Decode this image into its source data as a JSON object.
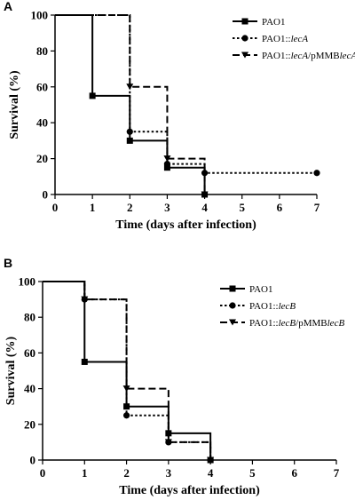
{
  "chart_data": [
    {
      "type": "line",
      "panel_label": "A",
      "step": true,
      "xlabel": "Time (days after infection)",
      "ylabel": "Survival (%)",
      "xlim": [
        0,
        7
      ],
      "ylim": [
        0,
        100
      ],
      "xticks": [
        "0",
        "1",
        "2",
        "3",
        "4",
        "5",
        "6",
        "7"
      ],
      "yticks": [
        "0",
        "20",
        "40",
        "60",
        "80",
        "100"
      ],
      "legend_position": "top-right",
      "series": [
        {
          "name_parts": [
            {
              "t": "PAO1",
              "i": false
            }
          ],
          "marker": "square",
          "dash": "solid",
          "steps": [
            [
              0,
              100
            ],
            [
              1,
              55
            ],
            [
              2,
              30
            ],
            [
              3,
              15
            ],
            [
              4,
              0
            ]
          ],
          "end_x": 4,
          "points": [
            [
              1,
              55
            ],
            [
              2,
              30
            ],
            [
              3,
              15
            ],
            [
              4,
              0
            ]
          ]
        },
        {
          "name_parts": [
            {
              "t": "PAO1::",
              "i": false
            },
            {
              "t": "lecA",
              "i": true
            }
          ],
          "marker": "circle",
          "dash": "dotted",
          "steps": [
            [
              0,
              100
            ],
            [
              2,
              35
            ],
            [
              3,
              17
            ],
            [
              4,
              12
            ]
          ],
          "end_x": 7,
          "points": [
            [
              2,
              35
            ],
            [
              3,
              17
            ],
            [
              4,
              12
            ],
            [
              7,
              12
            ]
          ]
        },
        {
          "name_parts": [
            {
              "t": "PAO1::",
              "i": false
            },
            {
              "t": "lecA",
              "i": true
            },
            {
              "t": "/pMMB",
              "i": false
            },
            {
              "t": "lecA",
              "i": true
            }
          ],
          "marker": "triangle",
          "dash": "dashed",
          "steps": [
            [
              0,
              100
            ],
            [
              2,
              60
            ],
            [
              3,
              20
            ],
            [
              4,
              0
            ]
          ],
          "end_x": 4,
          "points": [
            [
              2,
              60
            ],
            [
              3,
              20
            ],
            [
              4,
              0
            ]
          ]
        }
      ]
    },
    {
      "type": "line",
      "panel_label": "B",
      "step": true,
      "xlabel": "Time (days after infection)",
      "ylabel": "Survival (%)",
      "xlim": [
        0,
        7
      ],
      "ylim": [
        0,
        100
      ],
      "xticks": [
        "0",
        "1",
        "2",
        "3",
        "4",
        "5",
        "6",
        "7"
      ],
      "yticks": [
        "0",
        "20",
        "40",
        "60",
        "80",
        "100"
      ],
      "legend_position": "top-right",
      "series": [
        {
          "name_parts": [
            {
              "t": "PAO1",
              "i": false
            }
          ],
          "marker": "square",
          "dash": "solid",
          "steps": [
            [
              0,
              100
            ],
            [
              1,
              55
            ],
            [
              2,
              30
            ],
            [
              3,
              15
            ],
            [
              4,
              0
            ]
          ],
          "end_x": 4,
          "points": [
            [
              1,
              55
            ],
            [
              2,
              30
            ],
            [
              3,
              15
            ],
            [
              4,
              0
            ]
          ]
        },
        {
          "name_parts": [
            {
              "t": "PAO1::",
              "i": false
            },
            {
              "t": "lecB",
              "i": true
            }
          ],
          "marker": "circle",
          "dash": "dotted",
          "steps": [
            [
              0,
              100
            ],
            [
              1,
              90
            ],
            [
              2,
              25
            ],
            [
              3,
              10
            ],
            [
              4,
              0
            ]
          ],
          "end_x": 4,
          "points": [
            [
              1,
              90
            ],
            [
              2,
              25
            ],
            [
              3,
              10
            ],
            [
              4,
              0
            ]
          ]
        },
        {
          "name_parts": [
            {
              "t": "PAO1::",
              "i": false
            },
            {
              "t": "lecB",
              "i": true
            },
            {
              "t": "/pMMB",
              "i": false
            },
            {
              "t": "lecB",
              "i": true
            }
          ],
          "marker": "triangle",
          "dash": "dashed",
          "steps": [
            [
              0,
              100
            ],
            [
              1,
              90
            ],
            [
              2,
              40
            ],
            [
              3,
              10
            ],
            [
              4,
              0
            ]
          ],
          "end_x": 4,
          "points": [
            [
              1,
              90
            ],
            [
              2,
              40
            ],
            [
              3,
              10
            ],
            [
              4,
              0
            ]
          ]
        }
      ]
    }
  ]
}
